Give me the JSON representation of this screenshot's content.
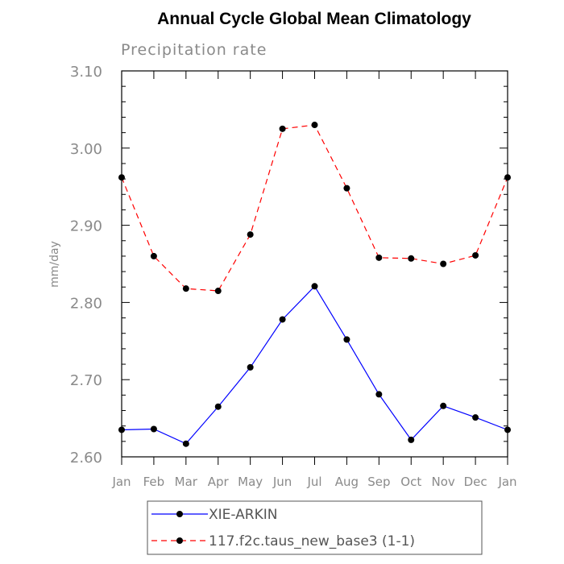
{
  "chart_data": {
    "type": "line",
    "title": "Annual Cycle Global Mean Climatology",
    "subtitle": "Precipitation rate",
    "xlabel": "",
    "ylabel": "mm/day",
    "categories": [
      "Jan",
      "Feb",
      "Mar",
      "Apr",
      "May",
      "Jun",
      "Jul",
      "Aug",
      "Sep",
      "Oct",
      "Nov",
      "Dec",
      "Jan"
    ],
    "ylim": [
      2.6,
      3.1
    ],
    "yticks": [
      "2.60",
      "2.70",
      "2.80",
      "2.90",
      "3.00",
      "3.10"
    ],
    "grid": false,
    "legend_position": "bottom",
    "series": [
      {
        "name": "XIE-ARKIN",
        "color": "#0000ff",
        "dash": "solid",
        "marker": "filled-circle",
        "values": [
          2.635,
          2.636,
          2.617,
          2.665,
          2.716,
          2.778,
          2.821,
          2.752,
          2.681,
          2.622,
          2.666,
          2.651,
          2.635
        ]
      },
      {
        "name": "117.f2c.taus_new_base3 (1-1)",
        "color": "#ff0000",
        "dash": "dashed",
        "marker": "filled-circle",
        "values": [
          2.962,
          2.86,
          2.818,
          2.815,
          2.888,
          3.025,
          3.03,
          2.948,
          2.858,
          2.857,
          2.85,
          2.861,
          2.962
        ]
      }
    ]
  }
}
